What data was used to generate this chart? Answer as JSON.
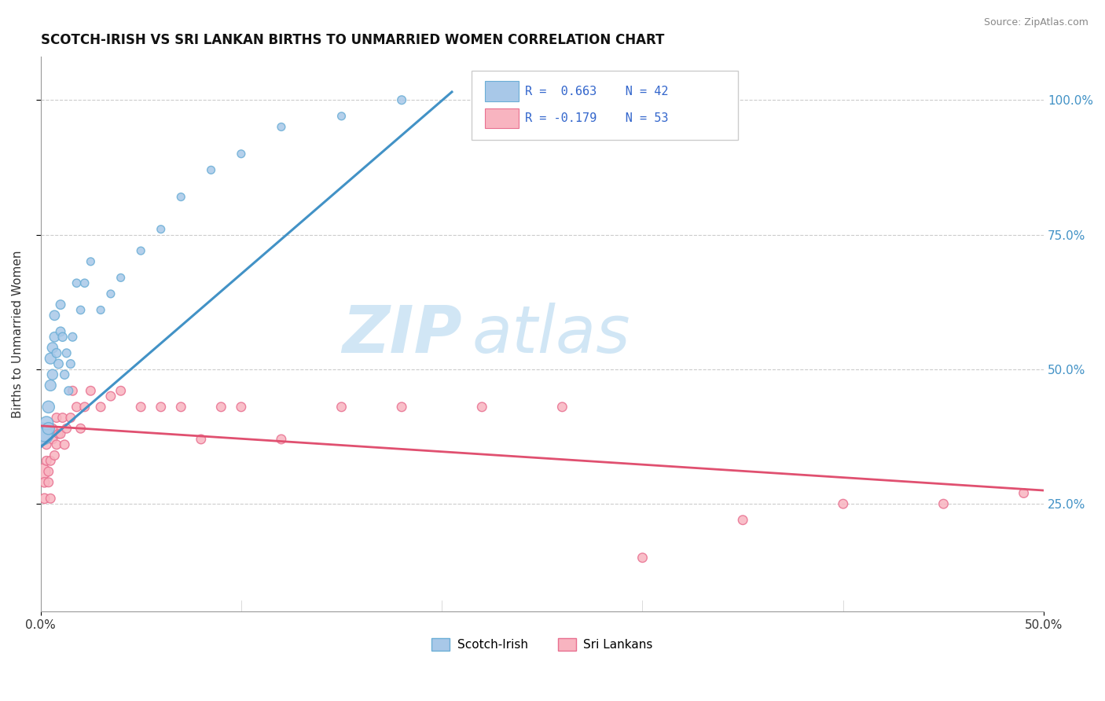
{
  "title": "SCOTCH-IRISH VS SRI LANKAN BIRTHS TO UNMARRIED WOMEN CORRELATION CHART",
  "source": "Source: ZipAtlas.com",
  "ylabel": "Births to Unmarried Women",
  "blue_color": "#a8c8e8",
  "blue_edge": "#6baed6",
  "pink_color": "#f8b4c0",
  "pink_edge": "#e87090",
  "line_blue": "#4292c6",
  "line_pink": "#e05070",
  "xlim": [
    0.0,
    0.5
  ],
  "ylim": [
    0.05,
    1.08
  ],
  "ytick_values": [
    0.25,
    0.5,
    0.75,
    1.0
  ],
  "ytick_labels": [
    "25.0%",
    "50.0%",
    "75.0%",
    "100.0%"
  ],
  "blue_line_x": [
    0.0,
    0.205
  ],
  "blue_line_y": [
    0.355,
    1.015
  ],
  "pink_line_x": [
    0.0,
    0.5
  ],
  "pink_line_y": [
    0.395,
    0.275
  ],
  "scotch_irish_x": [
    0.001,
    0.002,
    0.003,
    0.004,
    0.004,
    0.005,
    0.005,
    0.006,
    0.006,
    0.007,
    0.007,
    0.008,
    0.009,
    0.01,
    0.01,
    0.011,
    0.012,
    0.013,
    0.014,
    0.015,
    0.016,
    0.018,
    0.02,
    0.022,
    0.025,
    0.03,
    0.035,
    0.04,
    0.05,
    0.06,
    0.07,
    0.085,
    0.1,
    0.12,
    0.15,
    0.18
  ],
  "scotch_irish_y": [
    0.38,
    0.38,
    0.4,
    0.39,
    0.43,
    0.47,
    0.52,
    0.49,
    0.54,
    0.56,
    0.6,
    0.53,
    0.51,
    0.62,
    0.57,
    0.56,
    0.49,
    0.53,
    0.46,
    0.51,
    0.56,
    0.66,
    0.61,
    0.66,
    0.7,
    0.61,
    0.64,
    0.67,
    0.72,
    0.76,
    0.82,
    0.87,
    0.9,
    0.95,
    0.97,
    1.0
  ],
  "scotch_irish_sizes": [
    400,
    200,
    150,
    120,
    120,
    100,
    100,
    90,
    90,
    80,
    80,
    70,
    70,
    70,
    70,
    65,
    65,
    60,
    60,
    60,
    60,
    55,
    55,
    55,
    50,
    50,
    50,
    50,
    50,
    50,
    50,
    50,
    50,
    50,
    50,
    60
  ],
  "sri_lankan_x": [
    0.001,
    0.002,
    0.002,
    0.003,
    0.003,
    0.004,
    0.004,
    0.005,
    0.005,
    0.006,
    0.006,
    0.007,
    0.008,
    0.008,
    0.009,
    0.01,
    0.011,
    0.012,
    0.013,
    0.015,
    0.016,
    0.018,
    0.02,
    0.022,
    0.025,
    0.03,
    0.035,
    0.04,
    0.05,
    0.06,
    0.07,
    0.08,
    0.09,
    0.1,
    0.12,
    0.15,
    0.18,
    0.22,
    0.26,
    0.3,
    0.35,
    0.4,
    0.45,
    0.49
  ],
  "sri_lankan_y": [
    0.31,
    0.26,
    0.29,
    0.33,
    0.36,
    0.29,
    0.31,
    0.26,
    0.33,
    0.37,
    0.39,
    0.34,
    0.36,
    0.41,
    0.38,
    0.38,
    0.41,
    0.36,
    0.39,
    0.41,
    0.46,
    0.43,
    0.39,
    0.43,
    0.46,
    0.43,
    0.45,
    0.46,
    0.43,
    0.43,
    0.43,
    0.37,
    0.43,
    0.43,
    0.37,
    0.43,
    0.43,
    0.43,
    0.43,
    0.15,
    0.22,
    0.25,
    0.25,
    0.27
  ],
  "sri_lankan_sizes": [
    200,
    80,
    80,
    70,
    70,
    70,
    70,
    70,
    70,
    70,
    70,
    70,
    70,
    70,
    70,
    70,
    70,
    70,
    70,
    70,
    70,
    70,
    70,
    70,
    70,
    70,
    70,
    70,
    70,
    70,
    70,
    70,
    70,
    70,
    70,
    70,
    70,
    70,
    70,
    70,
    70,
    70,
    70,
    70
  ]
}
